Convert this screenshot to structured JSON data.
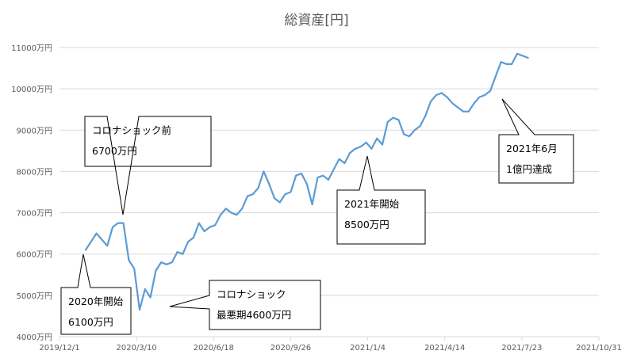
{
  "chart_data": {
    "type": "line",
    "title": "総資産[円]",
    "xlabel": "",
    "ylabel": "",
    "x_ticks": [
      "2019/12/1",
      "2020/3/10",
      "2020/6/18",
      "2020/9/26",
      "2021/1/4",
      "2021/4/14",
      "2021/7/23",
      "2021/10/31"
    ],
    "y_ticks": [
      "4000万円",
      "5000万円",
      "6000万円",
      "7000万円",
      "8000万円",
      "9000万円",
      "10000万円",
      "11000万円"
    ],
    "ylim": [
      4000,
      11000
    ],
    "xlim": [
      "2019-12-01",
      "2021-10-31"
    ],
    "grid": "horizontal",
    "legend": "none",
    "series_color": "#5b9bd5",
    "series": [
      {
        "x": [
          "2020-01-04",
          "2020-01-11",
          "2020-01-18",
          "2020-01-25",
          "2020-02-01",
          "2020-02-08",
          "2020-02-15",
          "2020-02-22",
          "2020-02-29",
          "2020-03-07",
          "2020-03-14",
          "2020-03-21",
          "2020-03-28",
          "2020-04-04",
          "2020-04-11",
          "2020-04-18",
          "2020-04-25",
          "2020-05-02",
          "2020-05-09",
          "2020-05-16",
          "2020-05-23",
          "2020-05-30",
          "2020-06-06",
          "2020-06-13",
          "2020-06-20",
          "2020-06-27",
          "2020-07-04",
          "2020-07-11",
          "2020-07-18",
          "2020-07-25",
          "2020-08-01",
          "2020-08-08",
          "2020-08-15",
          "2020-08-22",
          "2020-08-29",
          "2020-09-05",
          "2020-09-12",
          "2020-09-19",
          "2020-09-26",
          "2020-10-03",
          "2020-10-10",
          "2020-10-17",
          "2020-10-24",
          "2020-10-31",
          "2020-11-07",
          "2020-11-14",
          "2020-11-21",
          "2020-11-28",
          "2020-12-05",
          "2020-12-12",
          "2020-12-19",
          "2020-12-26",
          "2021-01-02",
          "2021-01-09",
          "2021-01-16",
          "2021-01-23",
          "2021-01-30",
          "2021-02-06",
          "2021-02-13",
          "2021-02-20",
          "2021-02-27",
          "2021-03-06",
          "2021-03-13",
          "2021-03-20",
          "2021-03-27",
          "2021-04-03",
          "2021-04-10",
          "2021-04-17",
          "2021-04-24",
          "2021-05-01",
          "2021-05-08",
          "2021-05-15",
          "2021-05-22",
          "2021-05-29",
          "2021-06-05",
          "2021-06-12",
          "2021-06-19",
          "2021-06-26",
          "2021-07-03",
          "2021-07-10",
          "2021-07-17",
          "2021-07-24",
          "2021-07-31"
        ],
        "values": [
          6100,
          6300,
          6500,
          6350,
          6200,
          6650,
          6750,
          6750,
          5850,
          5650,
          4650,
          5150,
          4950,
          5600,
          5800,
          5750,
          5800,
          6050,
          6000,
          6300,
          6400,
          6750,
          6550,
          6650,
          6700,
          6950,
          7100,
          7000,
          6950,
          7100,
          7400,
          7450,
          7600,
          8000,
          7700,
          7350,
          7250,
          7450,
          7500,
          7900,
          7950,
          7700,
          7200,
          7850,
          7900,
          7800,
          8050,
          8300,
          8200,
          8450,
          8550,
          8600,
          8700,
          8550,
          8800,
          8650,
          9200,
          9300,
          9250,
          8900,
          8850,
          9000,
          9100,
          9350,
          9700,
          9850,
          9900,
          9800,
          9650,
          9550,
          9450,
          9450,
          9650,
          9800,
          9850,
          9950,
          10300,
          10650,
          10600,
          10600,
          10850,
          10800,
          10750
        ]
      }
    ],
    "annotations": [
      {
        "id": "start",
        "lines": [
          "2020年開始",
          "6100万円"
        ]
      },
      {
        "id": "pre-corona",
        "lines": [
          "コロナショック前",
          "6700万円"
        ]
      },
      {
        "id": "corona-bottom",
        "lines": [
          "コロナショック",
          "最悪期4600万円"
        ]
      },
      {
        "id": "y2021",
        "lines": [
          "2021年開始",
          "8500万円"
        ]
      },
      {
        "id": "hundred-million",
        "lines": [
          "2021年6月",
          "1億円達成"
        ]
      }
    ]
  }
}
